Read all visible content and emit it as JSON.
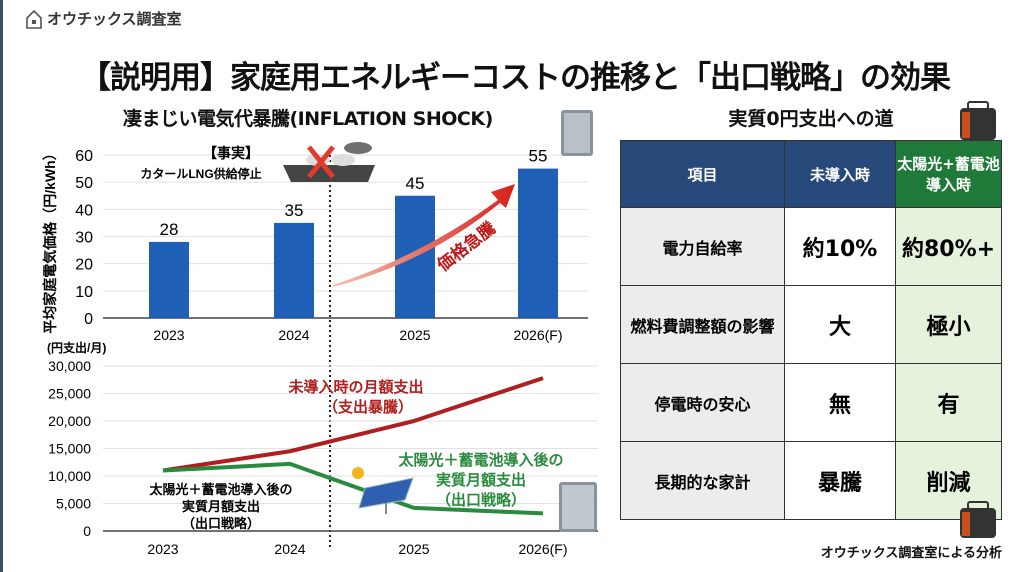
{
  "brand": {
    "name": "オウチックス調査室",
    "icon": "house-icon"
  },
  "title": "【説明用】家庭用エネルギーコストの推移と「出口戦略」の効果",
  "chart_data": [
    {
      "type": "bar",
      "title": "凄まじい電気代暴騰(INFLATION SHOCK)",
      "ylabel": "平均家庭電気価格（円/kWh）",
      "categories": [
        "2023",
        "2024",
        "2025",
        "2026(F)"
      ],
      "values": [
        28,
        35,
        45,
        55
      ],
      "ylim": [
        0,
        60
      ],
      "yticks": [
        0,
        10,
        20,
        30,
        40,
        50,
        60
      ],
      "grid": true,
      "color": "#1f5fb5",
      "annotations": {
        "fact_title": "【事実】",
        "fact_text": "カタールLNG供給停止",
        "arrow_label": "価格急騰"
      }
    },
    {
      "type": "line",
      "ylabel": "(円支出/月)",
      "categories": [
        "2023",
        "2024",
        "2025",
        "2026(F)"
      ],
      "ylim": [
        0,
        30000
      ],
      "yticks": [
        "0",
        "5,000",
        "10,000",
        "15,000",
        "20,000",
        "25,000",
        "30,000"
      ],
      "grid": true,
      "series": [
        {
          "name": "未導入時の月額支出（支出暴騰）",
          "label_lines": [
            "未導入時の月額支出",
            "（支出暴騰）"
          ],
          "values": [
            11000,
            14500,
            20000,
            27800
          ],
          "color": "#b01f1f"
        },
        {
          "name": "太陽光＋蓄電池導入後の実質月額支出（出口戦略）",
          "label_lines": [
            "太陽光＋蓄電池導入後の",
            "実質月額支出",
            "（出口戦略）"
          ],
          "values": [
            11000,
            12200,
            4200,
            3200
          ],
          "color": "#2a8a3e"
        }
      ],
      "left_label_lines": [
        "太陽光＋蓄電池導入後の",
        "実質月額支出",
        "（出口戦略）"
      ]
    }
  ],
  "table": {
    "title": "実質0円支出への道",
    "headers": [
      "項目",
      "未導入時",
      "太陽光+蓄電池導入時"
    ],
    "rows": [
      [
        "電力自給率",
        "約10%",
        "約80%+"
      ],
      [
        "燃料費調整額の影響",
        "大",
        "極小"
      ],
      [
        "停電時の安心",
        "無",
        "有"
      ],
      [
        "長期的な家計",
        "暴騰",
        "削減"
      ]
    ]
  },
  "credit": "オウチックス調査室による分析"
}
